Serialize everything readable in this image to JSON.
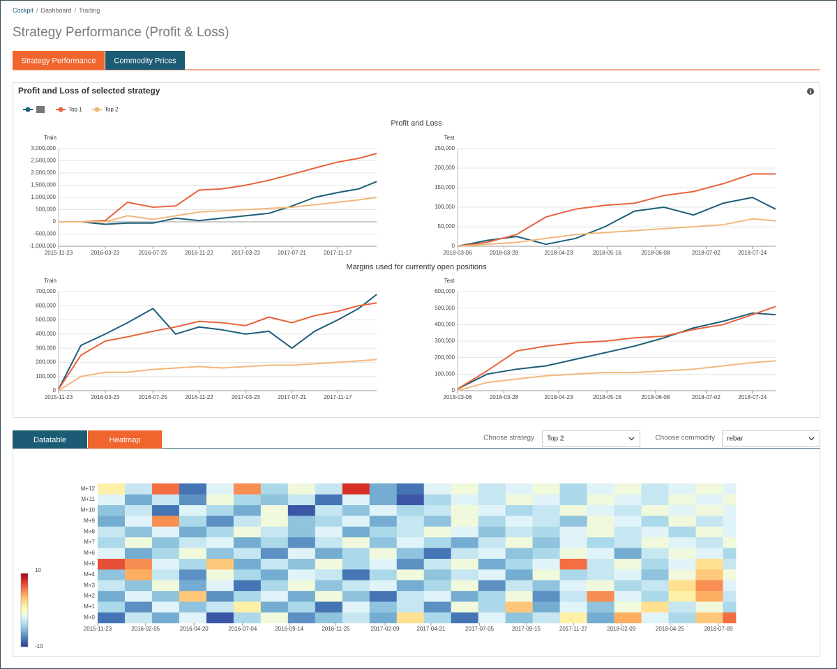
{
  "breadcrumb": [
    "Cockpit",
    "Dashboard",
    "Trading"
  ],
  "breadcrumb_separator": "/",
  "page_title": "Strategy Performance (Profit & Loss)",
  "tabs": [
    "Strategy Performance",
    "Commodity Prices"
  ],
  "active_tab": 0,
  "panel": {
    "title": "Profit and Loss of selected strategy",
    "pnl_heading": "Profit and Loss",
    "margins_heading": "Margins used for currently open positions"
  },
  "lower_tabs": [
    "Datatable",
    "Heatmap"
  ],
  "active_lower_tab": 1,
  "controls": {
    "strategy_label": "Choose strategy",
    "strategy": "Top 2",
    "commodity_label": "Choose commodity",
    "commodity": "rebar"
  },
  "chart_data": [
    {
      "type": "line",
      "y_label": "Train",
      "grid": true,
      "x": [
        "2015-11-23",
        "2016-01-20",
        "2016-03-23",
        "2016-05-20",
        "2016-07-25",
        "2016-09-22",
        "2016-11-22",
        "2017-01-20",
        "2017-03-23",
        "2017-05-22",
        "2017-07-21",
        "2017-09-18",
        "2017-11-17",
        "2018-01-10",
        "2018-02-26"
      ],
      "xlim": [
        "2015-11-23",
        "2018-02-26"
      ],
      "xticks": [
        "2015-11-23",
        "2016-03-23",
        "2016-07-25",
        "2016-11-22",
        "2017-03-23",
        "2017-07-21",
        "2017-11-17"
      ],
      "ylim": [
        -1000000,
        3000000
      ],
      "yticks": [
        {
          "value": -1000000,
          "label": "-1,000,000"
        },
        {
          "value": -500000,
          "label": "-500,000"
        },
        0,
        {
          "value": 500000,
          "label": "500,000"
        },
        {
          "value": 1000000,
          "label": "1,000,000"
        },
        {
          "value": 1500000,
          "label": "1,500,000"
        },
        {
          "value": 2000000,
          "label": "2,000,000"
        },
        {
          "value": 2500000,
          "label": "2,500,000"
        },
        {
          "value": 3000000,
          "label": "3,000,000"
        }
      ],
      "series": [
        {
          "color": "#1d5e78",
          "values": [
            0,
            0,
            -100000,
            -50000,
            -50000,
            150000,
            50000,
            150000,
            250000,
            350000,
            650000,
            1000000,
            1200000,
            1350000,
            1650000
          ]
        },
        {
          "name": "Top 1",
          "color": "#e8643c",
          "values": [
            0,
            0,
            50000,
            800000,
            600000,
            650000,
            1300000,
            1350000,
            1500000,
            1700000,
            1950000,
            2200000,
            2450000,
            2600000,
            2800000
          ]
        },
        {
          "name": "Top 2",
          "color": "#f2b77a",
          "values": [
            0,
            0,
            0,
            250000,
            100000,
            250000,
            400000,
            450000,
            500000,
            550000,
            600000,
            700000,
            800000,
            900000,
            1000000
          ]
        }
      ]
    },
    {
      "type": "line",
      "y_label": "Test",
      "grid": true,
      "x": [
        "2018-03-06",
        "2018-03-20",
        "2018-04-03",
        "2018-04-17",
        "2018-05-01",
        "2018-05-15",
        "2018-05-29",
        "2018-06-12",
        "2018-06-26",
        "2018-07-10",
        "2018-07-24",
        "2018-08-04"
      ],
      "xlim": [
        "2018-03-06",
        "2018-08-04"
      ],
      "xticks": [
        "2018-03-06",
        "2018-03-28",
        "2018-04-23",
        "2018-05-16",
        "2018-06-08",
        "2018-07-02",
        "2018-07-24"
      ],
      "ylim": [
        0,
        250000
      ],
      "yticks": [
        0,
        {
          "value": 50000,
          "label": "50,000"
        },
        {
          "value": 100000,
          "label": "100,000"
        },
        {
          "value": 150000,
          "label": "150,000"
        },
        {
          "value": 200000,
          "label": "200,000"
        },
        {
          "value": 250000,
          "label": "250,000"
        }
      ],
      "series": [
        {
          "color": "#1d5e78",
          "values": [
            0,
            15000,
            25000,
            5000,
            20000,
            50000,
            90000,
            100000,
            80000,
            110000,
            125000,
            95000
          ]
        },
        {
          "name": "Top 1",
          "color": "#e8643c",
          "values": [
            0,
            10000,
            30000,
            75000,
            95000,
            105000,
            110000,
            130000,
            140000,
            160000,
            185000,
            185000
          ]
        },
        {
          "name": "Top 2",
          "color": "#f2b77a",
          "values": [
            0,
            5000,
            10000,
            20000,
            30000,
            35000,
            40000,
            45000,
            50000,
            55000,
            70000,
            65000
          ]
        }
      ]
    },
    {
      "type": "line",
      "y_label": "Train",
      "grid": true,
      "x": [
        "2015-11-23",
        "2016-01-20",
        "2016-03-23",
        "2016-05-20",
        "2016-07-25",
        "2016-09-22",
        "2016-11-22",
        "2017-01-20",
        "2017-03-23",
        "2017-05-22",
        "2017-07-21",
        "2017-09-18",
        "2017-11-17",
        "2018-01-10",
        "2018-02-26"
      ],
      "xlim": [
        "2015-11-23",
        "2018-02-26"
      ],
      "xticks": [
        "2015-11-23",
        "2016-03-23",
        "2016-07-25",
        "2016-11-22",
        "2017-03-23",
        "2017-07-21",
        "2017-11-17"
      ],
      "ylim": [
        0,
        700000
      ],
      "yticks": [
        0,
        {
          "value": 100000,
          "label": "100,000"
        },
        {
          "value": 200000,
          "label": "200,000"
        },
        {
          "value": 300000,
          "label": "300,000"
        },
        {
          "value": 400000,
          "label": "400,000"
        },
        {
          "value": 500000,
          "label": "500,000"
        },
        {
          "value": 600000,
          "label": "600,000"
        },
        {
          "value": 700000,
          "label": "700,000"
        }
      ],
      "series": [
        {
          "color": "#1d5e78",
          "values": [
            10000,
            320000,
            400000,
            480000,
            580000,
            400000,
            450000,
            430000,
            400000,
            420000,
            300000,
            420000,
            500000,
            580000,
            680000
          ]
        },
        {
          "name": "Top 1",
          "color": "#e8643c",
          "values": [
            10000,
            250000,
            350000,
            380000,
            420000,
            450000,
            490000,
            480000,
            460000,
            520000,
            480000,
            530000,
            560000,
            600000,
            620000
          ]
        },
        {
          "name": "Top 2",
          "color": "#f2b77a",
          "values": [
            0,
            100000,
            130000,
            130000,
            150000,
            160000,
            170000,
            160000,
            170000,
            180000,
            180000,
            190000,
            200000,
            210000,
            220000
          ]
        }
      ]
    },
    {
      "type": "line",
      "y_label": "Test",
      "grid": true,
      "x": [
        "2018-03-06",
        "2018-03-20",
        "2018-04-03",
        "2018-04-17",
        "2018-05-01",
        "2018-05-15",
        "2018-05-29",
        "2018-06-12",
        "2018-06-26",
        "2018-07-10",
        "2018-07-24",
        "2018-08-04"
      ],
      "xlim": [
        "2018-03-06",
        "2018-08-04"
      ],
      "xticks": [
        "2018-03-06",
        "2018-03-28",
        "2018-04-23",
        "2018-05-16",
        "2018-06-08",
        "2018-07-02",
        "2018-07-24"
      ],
      "ylim": [
        0,
        600000
      ],
      "yticks": [
        0,
        {
          "value": 100000,
          "label": "100,000"
        },
        {
          "value": 200000,
          "label": "200,000"
        },
        {
          "value": 300000,
          "label": "300,000"
        },
        {
          "value": 400000,
          "label": "400,000"
        },
        {
          "value": 500000,
          "label": "500,000"
        },
        {
          "value": 600000,
          "label": "600,000"
        }
      ],
      "series": [
        {
          "color": "#1d5e78",
          "values": [
            10000,
            100000,
            130000,
            150000,
            190000,
            230000,
            270000,
            320000,
            380000,
            420000,
            470000,
            460000
          ]
        },
        {
          "name": "Top 1",
          "color": "#e8643c",
          "values": [
            10000,
            120000,
            240000,
            270000,
            290000,
            300000,
            320000,
            330000,
            370000,
            400000,
            460000,
            510000
          ]
        },
        {
          "name": "Top 2",
          "color": "#f2b77a",
          "values": [
            0,
            50000,
            70000,
            90000,
            100000,
            110000,
            110000,
            120000,
            130000,
            150000,
            170000,
            180000
          ]
        }
      ]
    },
    {
      "type": "heatmap",
      "y": [
        "M+0",
        "M+1",
        "M+2",
        "M+3",
        "M+4",
        "M+5",
        "M+6",
        "M+7",
        "M+8",
        "M+9",
        "M+10",
        "M+11",
        "M+12"
      ],
      "x": [
        "2015-11-23",
        "2016-01-04",
        "2016-02-15",
        "2016-03-28",
        "2016-05-09",
        "2016-06-20",
        "2016-08-01",
        "2016-09-12",
        "2016-10-24",
        "2016-12-05",
        "2017-01-16",
        "2017-02-27",
        "2017-04-10",
        "2017-05-22",
        "2017-07-03",
        "2017-08-14",
        "2017-09-25",
        "2017-11-06",
        "2017-12-18",
        "2018-01-29",
        "2018-03-12",
        "2018-04-23",
        "2018-06-04",
        "2018-07-16"
      ],
      "xlim": [
        "2015-11-23",
        "2018-08-05"
      ],
      "xticks": [
        "2015-11-23",
        "2016-02-05",
        "2016-04-20",
        "2016-07-04",
        "2016-09-14",
        "2016-11-25",
        "2017-02-09",
        "2017-04-21",
        "2017-07-05",
        "2017-09-15",
        "2017-11-27",
        "2018-02-09",
        "2018-04-25",
        "2018-07-09"
      ],
      "zlim": [
        -10,
        10
      ],
      "colorscale": [
        "#313695",
        "#4575b4",
        "#74add1",
        "#abd9e9",
        "#e0f3f8",
        "#ffffbf",
        "#fee090",
        "#fdae61",
        "#f46d43",
        "#d73027",
        "#a50026"
      ],
      "values": [
        [
          -8,
          -3,
          -6,
          -2,
          -9,
          -4,
          -1,
          -7,
          -5,
          -3,
          -6,
          2,
          -4,
          -8,
          -2,
          -5,
          -3,
          1,
          -6,
          4,
          -2,
          -4,
          3,
          6
        ],
        [
          -4,
          -7,
          -2,
          -5,
          -3,
          1,
          -6,
          -4,
          -8,
          -2,
          -5,
          -3,
          -7,
          -1,
          -4,
          3,
          -6,
          -2,
          -5,
          -1,
          2,
          -3,
          -1,
          -4
        ],
        [
          -6,
          -2,
          -5,
          3,
          -7,
          -4,
          -2,
          -6,
          -1,
          -5,
          -8,
          -3,
          -2,
          -6,
          -4,
          -1,
          -7,
          -3,
          5,
          -2,
          -4,
          1,
          4,
          -3
        ],
        [
          -3,
          -5,
          -1,
          -6,
          -2,
          -8,
          -4,
          -1,
          -5,
          -3,
          -2,
          -6,
          -4,
          -1,
          -7,
          -3,
          -5,
          -2,
          -1,
          -4,
          -3,
          2,
          5,
          -2
        ],
        [
          -5,
          4,
          -3,
          -7,
          -1,
          -4,
          -6,
          -2,
          -3,
          -8,
          -4,
          -1,
          -5,
          -3,
          -2,
          -6,
          -1,
          -4,
          -3,
          -2,
          -5,
          -1,
          3,
          -1
        ],
        [
          7,
          5,
          -2,
          -4,
          3,
          -6,
          -3,
          -5,
          -1,
          -4,
          -2,
          -7,
          -3,
          -1,
          -6,
          -4,
          -2,
          6,
          -3,
          -1,
          -4,
          -2,
          2,
          -3
        ],
        [
          -2,
          -6,
          -4,
          -1,
          -5,
          -3,
          -7,
          -2,
          -6,
          -4,
          -1,
          -5,
          -8,
          -3,
          -2,
          -5,
          -4,
          -1,
          -2,
          -6,
          -3,
          -1,
          -2,
          -4
        ],
        [
          -4,
          -1,
          -5,
          -3,
          -2,
          -6,
          -4,
          -7,
          -3,
          -1,
          -5,
          -2,
          -4,
          -6,
          -3,
          -1,
          -5,
          -2,
          -4,
          -3,
          -1,
          -2,
          -3,
          -1
        ],
        [
          -3,
          -5,
          -2,
          -6,
          -4,
          -1,
          -3,
          -5,
          -2,
          -6,
          -4,
          -3,
          -1,
          -2,
          -5,
          -3,
          -4,
          -2,
          -1,
          -3,
          -2,
          -4,
          -1,
          -2
        ],
        [
          -6,
          -2,
          5,
          -4,
          -7,
          -3,
          -1,
          -5,
          -4,
          -2,
          -6,
          -3,
          -5,
          -1,
          -4,
          -2,
          -3,
          -5,
          -1,
          -2,
          -4,
          -1,
          -3,
          -2
        ],
        [
          -5,
          -3,
          -8,
          -2,
          -4,
          -6,
          -1,
          -9,
          -3,
          -5,
          -2,
          -4,
          -3,
          -1,
          -2,
          -4,
          -3,
          -1,
          -2,
          -3,
          -1,
          -2,
          -1,
          -2
        ],
        [
          -2,
          -6,
          -3,
          -7,
          -1,
          -4,
          -5,
          -3,
          -8,
          -2,
          -6,
          -9,
          -4,
          -2,
          -3,
          -1,
          -2,
          -4,
          -1,
          -2,
          -3,
          -1,
          -2,
          -1
        ],
        [
          1,
          -3,
          6,
          -8,
          -2,
          5,
          -4,
          -1,
          -3,
          8,
          -6,
          -8,
          -2,
          -1,
          -3,
          -2,
          -1,
          -4,
          -2,
          -1,
          -3,
          -2,
          -1,
          -2
        ]
      ]
    }
  ]
}
